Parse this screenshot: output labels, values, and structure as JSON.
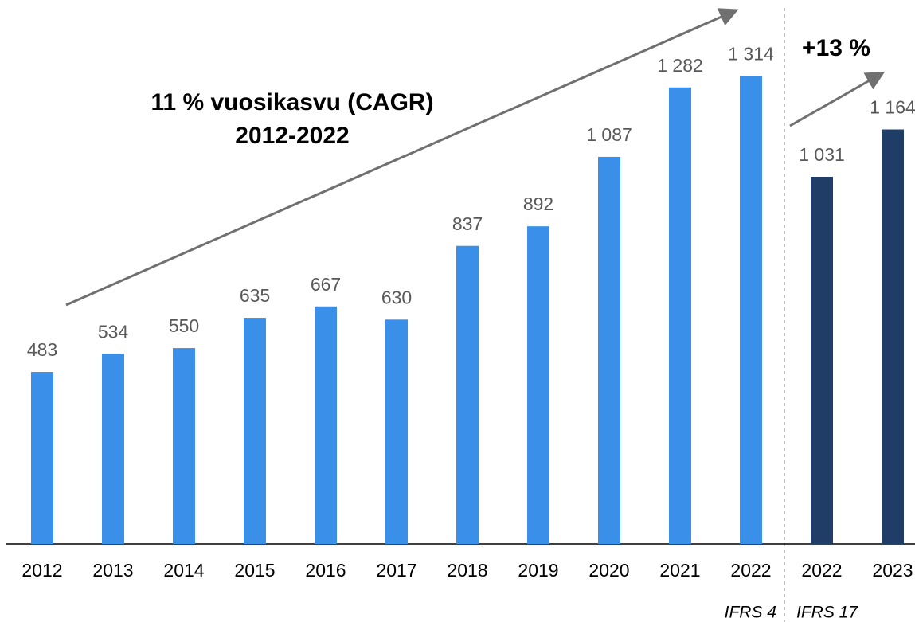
{
  "chart_data": {
    "type": "bar",
    "categories": [
      "2012",
      "2013",
      "2014",
      "2015",
      "2016",
      "2017",
      "2018",
      "2019",
      "2020",
      "2021",
      "2022",
      "2022",
      "2023"
    ],
    "values": [
      483,
      534,
      550,
      635,
      667,
      630,
      837,
      892,
      1087,
      1282,
      1314,
      1031,
      1164
    ],
    "value_labels": [
      "483",
      "534",
      "550",
      "635",
      "667",
      "630",
      "837",
      "892",
      "1 087",
      "1 282",
      "1 314",
      "1 031",
      "1 164"
    ],
    "colors": [
      "#3a8fe8",
      "#3a8fe8",
      "#3a8fe8",
      "#3a8fe8",
      "#3a8fe8",
      "#3a8fe8",
      "#3a8fe8",
      "#3a8fe8",
      "#3a8fe8",
      "#3a8fe8",
      "#3a8fe8",
      "#1f3d66",
      "#1f3d66"
    ],
    "ylim": [
      0,
      1400
    ],
    "annotations": {
      "cagr": "11 % vuosikasvu (CAGR)",
      "period": "2012-2022",
      "growth": "+13 %",
      "ifrs4": "IFRS 4",
      "ifrs17": "IFRS 17"
    }
  }
}
